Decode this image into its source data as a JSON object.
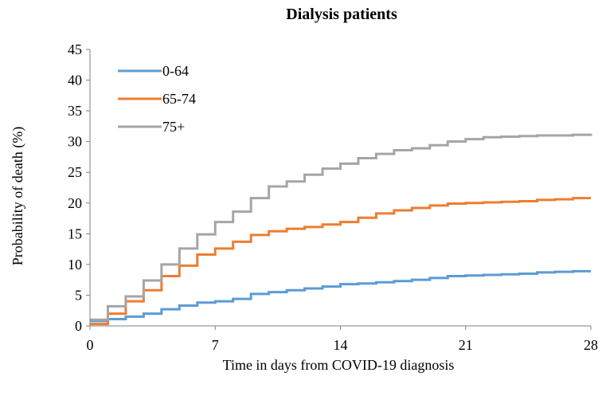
{
  "chart_data": {
    "type": "line",
    "step": true,
    "title": "Dialysis patients",
    "xlabel": "Time in days from COVID-19 diagnosis",
    "ylabel": "Probability of death (%)",
    "xlim": [
      0,
      28
    ],
    "ylim": [
      0,
      45
    ],
    "xticks": [
      0,
      7,
      14,
      21,
      28
    ],
    "yticks": [
      0,
      5,
      10,
      15,
      20,
      25,
      30,
      35,
      40,
      45
    ],
    "grid": false,
    "legend_position": "top-left",
    "series": [
      {
        "name": "0-64",
        "color": "#5B9BD5",
        "x": [
          0,
          1,
          2,
          3,
          4,
          5,
          6,
          7,
          8,
          9,
          10,
          11,
          12,
          13,
          14,
          15,
          16,
          17,
          18,
          19,
          20,
          21,
          22,
          23,
          24,
          25,
          26,
          27,
          28
        ],
        "y": [
          0.8,
          1.1,
          1.5,
          2.0,
          2.7,
          3.3,
          3.8,
          4.0,
          4.4,
          5.2,
          5.5,
          5.8,
          6.1,
          6.4,
          6.8,
          6.9,
          7.1,
          7.3,
          7.5,
          7.8,
          8.1,
          8.2,
          8.3,
          8.4,
          8.5,
          8.7,
          8.8,
          8.9,
          8.9
        ]
      },
      {
        "name": "65-74",
        "color": "#ED7D31",
        "x": [
          0,
          1,
          2,
          3,
          4,
          5,
          6,
          7,
          8,
          9,
          10,
          11,
          12,
          13,
          14,
          15,
          16,
          17,
          18,
          19,
          20,
          21,
          22,
          23,
          24,
          25,
          26,
          27,
          28
        ],
        "y": [
          0.3,
          2.0,
          4.0,
          5.8,
          8.1,
          9.8,
          11.6,
          12.6,
          13.7,
          14.8,
          15.4,
          15.8,
          16.1,
          16.5,
          16.9,
          17.6,
          18.3,
          18.8,
          19.2,
          19.6,
          19.9,
          20.0,
          20.1,
          20.2,
          20.3,
          20.5,
          20.6,
          20.8,
          20.8
        ]
      },
      {
        "name": "75+",
        "color": "#A5A5A5",
        "x": [
          0,
          1,
          2,
          3,
          4,
          5,
          6,
          7,
          8,
          9,
          10,
          11,
          12,
          13,
          14,
          15,
          16,
          17,
          18,
          19,
          20,
          21,
          22,
          23,
          24,
          25,
          26,
          27,
          28
        ],
        "y": [
          1.0,
          3.2,
          4.8,
          7.4,
          10.0,
          12.6,
          14.9,
          16.9,
          18.6,
          20.8,
          22.7,
          23.5,
          24.6,
          25.6,
          26.4,
          27.3,
          28.0,
          28.6,
          28.9,
          29.4,
          30.0,
          30.4,
          30.7,
          30.8,
          30.9,
          31.0,
          31.0,
          31.1,
          31.3
        ]
      }
    ]
  }
}
